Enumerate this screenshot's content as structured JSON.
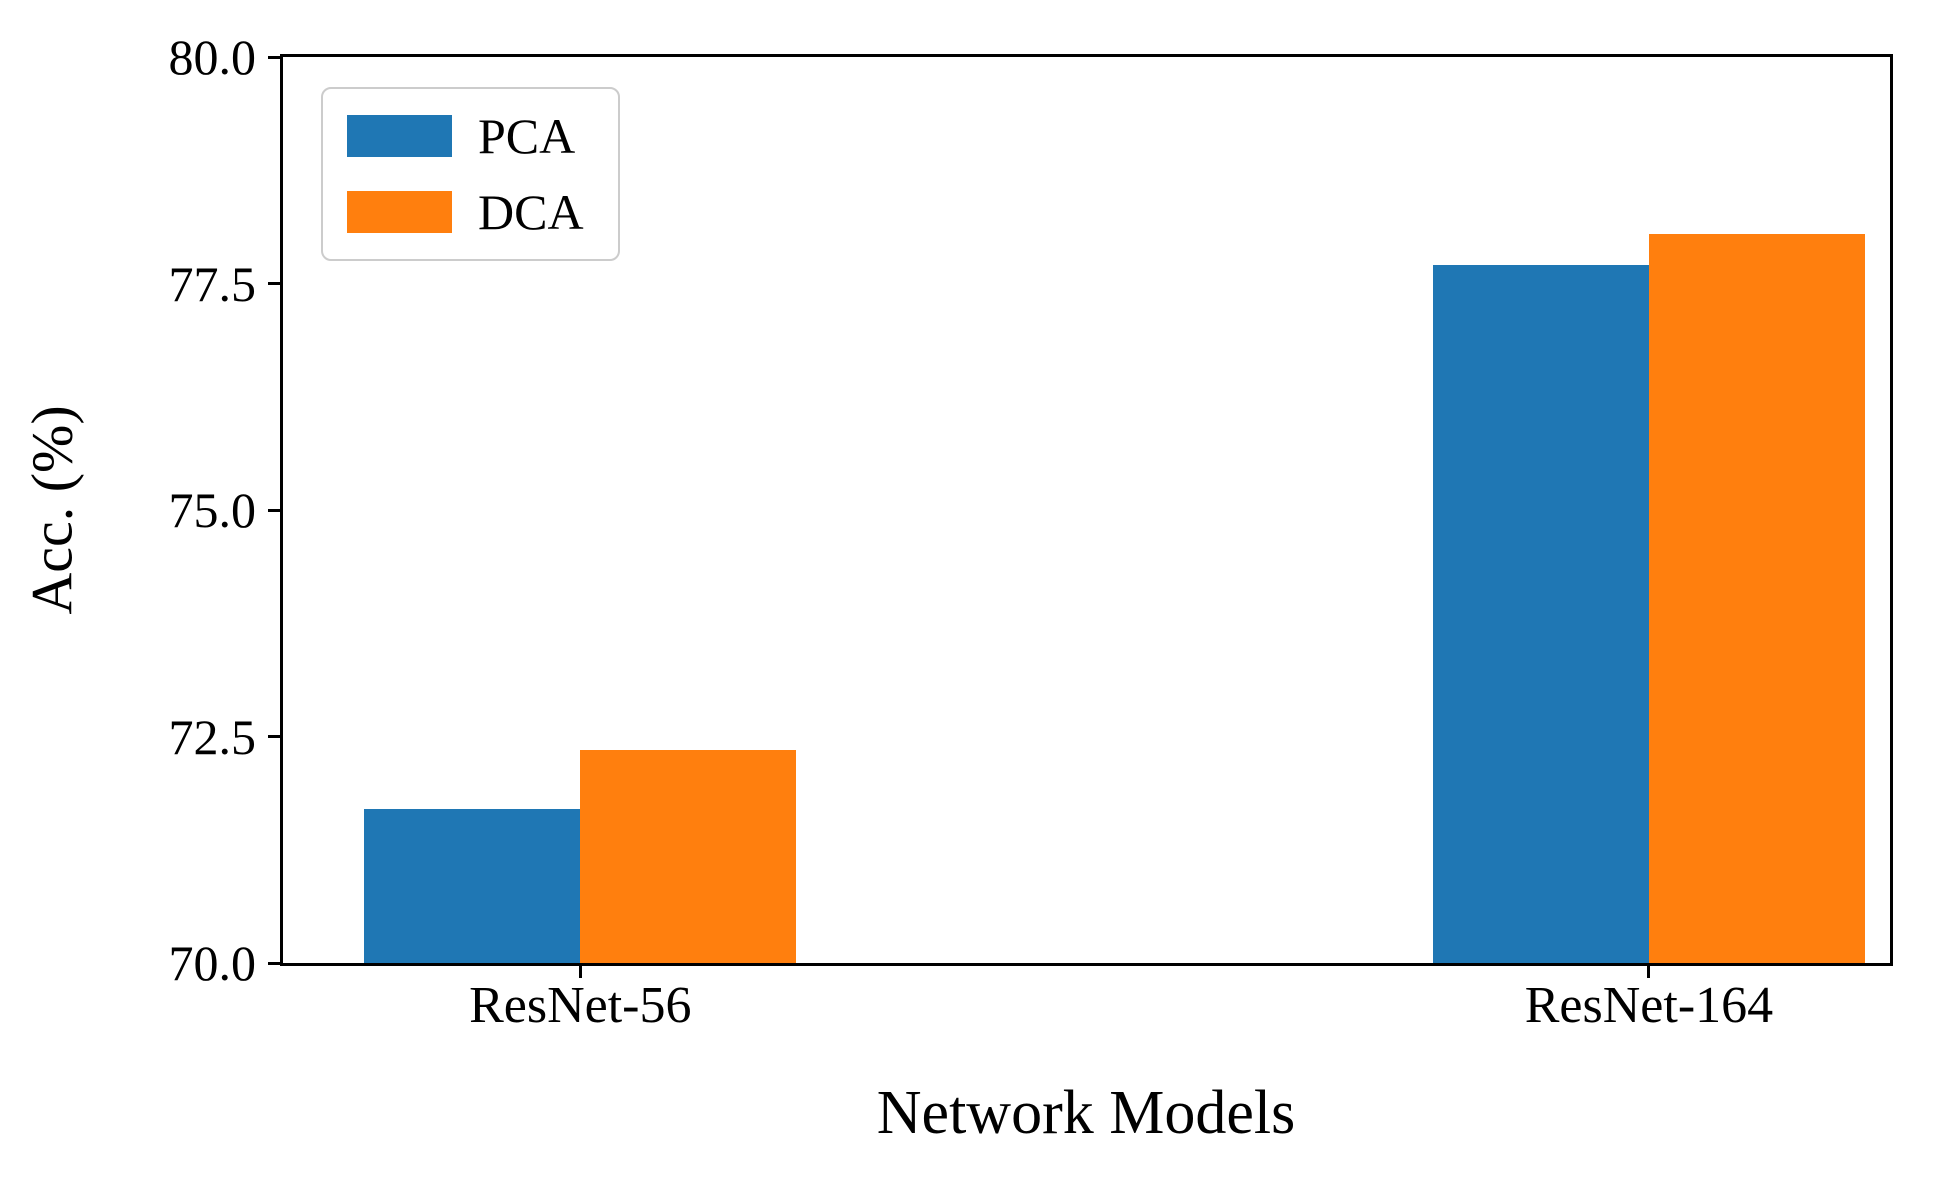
{
  "chart_data": {
    "type": "bar",
    "title": "",
    "xlabel": "Network Models",
    "ylabel": "Acc. (%)",
    "categories": [
      "ResNet-56",
      "ResNet-164"
    ],
    "series": [
      {
        "name": "PCA",
        "color": "#1f77b4",
        "values": [
          71.7,
          77.7
        ]
      },
      {
        "name": "DCA",
        "color": "#ff7f0e",
        "values": [
          72.35,
          78.05
        ]
      }
    ],
    "ylim": [
      70.0,
      80.0
    ],
    "yticks": [
      70.0,
      72.5,
      75.0,
      77.5,
      80.0
    ],
    "ytick_labels": [
      "70.0",
      "72.5",
      "75.0",
      "77.5",
      "80.0"
    ],
    "legend_position": "upper-left",
    "grid": false,
    "background_color": "#ffffff",
    "axis_color": "#000000"
  }
}
